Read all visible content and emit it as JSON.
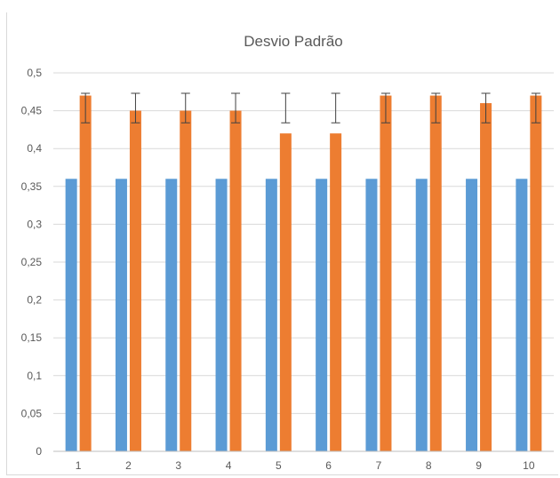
{
  "chart_data": {
    "type": "bar",
    "title": "Desvio Padrão",
    "xlabel": "",
    "ylabel": "",
    "categories": [
      "1",
      "2",
      "3",
      "4",
      "5",
      "6",
      "7",
      "8",
      "9",
      "10"
    ],
    "series": [
      {
        "values": [
          0.36,
          0.36,
          0.36,
          0.36,
          0.36,
          0.36,
          0.36,
          0.36,
          0.36,
          0.36
        ],
        "color": "#5B9BD5"
      },
      {
        "values": [
          0.47,
          0.45,
          0.45,
          0.45,
          0.42,
          0.42,
          0.47,
          0.47,
          0.46,
          0.47
        ],
        "color": "#ED7D31",
        "error_bars": [
          [
            0.434,
            0.473
          ],
          [
            0.434,
            0.473
          ],
          [
            0.434,
            0.473
          ],
          [
            0.434,
            0.473
          ],
          [
            0.434,
            0.473
          ],
          [
            0.434,
            0.473
          ],
          [
            0.434,
            0.473
          ],
          [
            0.434,
            0.473
          ],
          [
            0.434,
            0.473
          ],
          [
            0.434,
            0.473
          ]
        ]
      }
    ],
    "ylim": [
      0,
      0.5
    ],
    "yticks": [
      "0",
      "0,05",
      "0,1",
      "0,15",
      "0,2",
      "0,25",
      "0,3",
      "0,35",
      "0,4",
      "0,45",
      "0,5"
    ],
    "grid": true,
    "gridColor": "#d9d9d9",
    "axisColor": "#bfbfbf",
    "errorBarColor": "#404040",
    "legend": "none"
  }
}
